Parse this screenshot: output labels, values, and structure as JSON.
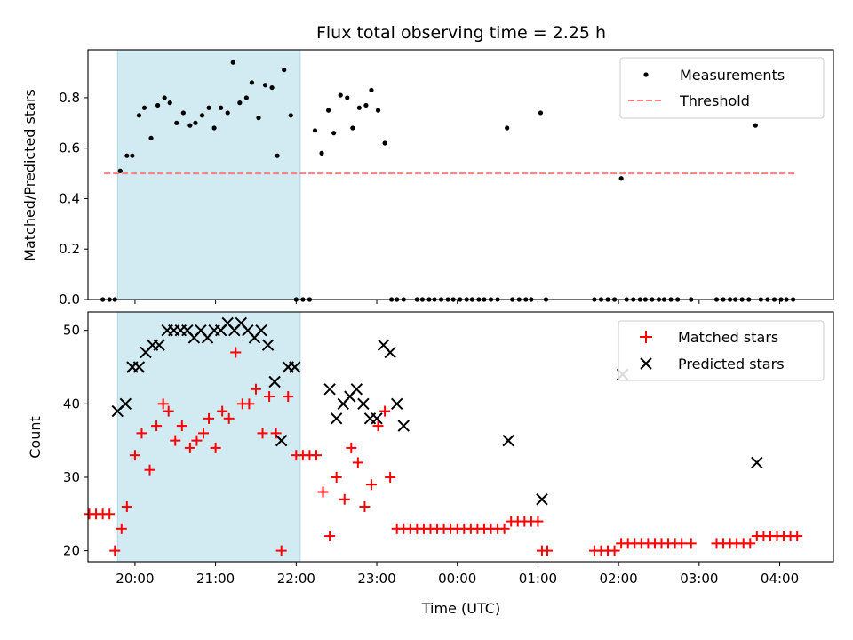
{
  "title": "Flux total observing time = 2.25 h",
  "xlabel": "Time (UTC)",
  "colors": {
    "measurements": "#000000",
    "threshold": "#ff7f7f",
    "matched": "#ff0000",
    "predicted": "#000000",
    "shade": "#add8e6"
  },
  "chart_data": [
    {
      "type": "scatter",
      "panel": "top",
      "ylabel": "Matched/Predicted stars",
      "xlim": [
        "19:25",
        "04:40"
      ],
      "ylim": [
        0,
        0.99
      ],
      "yticks": [
        0.0,
        0.2,
        0.4,
        0.6,
        0.8
      ],
      "ytick_labels": [
        "0.0",
        "0.2",
        "0.4",
        "0.6",
        "0.8"
      ],
      "xticks": [
        "20:00",
        "21:00",
        "22:00",
        "23:00",
        "00:00",
        "01:00",
        "02:00",
        "03:00",
        "04:00"
      ],
      "shaded_interval": [
        "19:47",
        "22:03"
      ],
      "legend": {
        "placement": "top-right",
        "entries": [
          "Measurements",
          "Threshold"
        ]
      },
      "threshold": {
        "name": "Threshold",
        "y": 0.5,
        "x_range": [
          "19:37",
          "04:12"
        ],
        "style": "dashed"
      },
      "series": [
        {
          "name": "Measurements",
          "points": [
            [
              "19:36",
              0
            ],
            [
              "19:41",
              0
            ],
            [
              "19:45",
              0
            ],
            [
              "19:49",
              0.51
            ],
            [
              "19:54",
              0.57
            ],
            [
              "19:58",
              0.57
            ],
            [
              "20:03",
              0.73
            ],
            [
              "20:07",
              0.76
            ],
            [
              "20:12",
              0.64
            ],
            [
              "20:17",
              0.77
            ],
            [
              "20:22",
              0.8
            ],
            [
              "20:26",
              0.78
            ],
            [
              "20:31",
              0.7
            ],
            [
              "20:36",
              0.74
            ],
            [
              "20:41",
              0.69
            ],
            [
              "20:45",
              0.7
            ],
            [
              "20:50",
              0.73
            ],
            [
              "20:55",
              0.76
            ],
            [
              "20:59",
              0.68
            ],
            [
              "21:04",
              0.76
            ],
            [
              "21:09",
              0.74
            ],
            [
              "21:13",
              0.94
            ],
            [
              "21:18",
              0.78
            ],
            [
              "21:23",
              0.8
            ],
            [
              "21:27",
              0.86
            ],
            [
              "21:32",
              0.72
            ],
            [
              "21:37",
              0.85
            ],
            [
              "21:42",
              0.84
            ],
            [
              "21:46",
              0.57
            ],
            [
              "21:51",
              0.91
            ],
            [
              "21:56",
              0.73
            ],
            [
              "22:00",
              0
            ],
            [
              "22:05",
              0
            ],
            [
              "22:10",
              0
            ],
            [
              "22:14",
              0.67
            ],
            [
              "22:19",
              0.58
            ],
            [
              "22:24",
              0.75
            ],
            [
              "22:28",
              0.66
            ],
            [
              "22:33",
              0.81
            ],
            [
              "22:38",
              0.8
            ],
            [
              "22:42",
              0.68
            ],
            [
              "22:47",
              0.76
            ],
            [
              "22:52",
              0.77
            ],
            [
              "22:56",
              0.83
            ],
            [
              "23:01",
              0.75
            ],
            [
              "23:06",
              0.62
            ],
            [
              "23:11",
              0
            ],
            [
              "23:15",
              0
            ],
            [
              "23:20",
              0
            ],
            [
              "23:30",
              0
            ],
            [
              "23:34",
              0
            ],
            [
              "23:39",
              0
            ],
            [
              "23:43",
              0
            ],
            [
              "23:48",
              0
            ],
            [
              "23:53",
              0
            ],
            [
              "23:57",
              0
            ],
            [
              "00:02",
              0
            ],
            [
              "00:07",
              0
            ],
            [
              "00:11",
              0
            ],
            [
              "00:16",
              0
            ],
            [
              "00:20",
              0
            ],
            [
              "00:25",
              0
            ],
            [
              "00:30",
              0
            ],
            [
              "00:37",
              0.68
            ],
            [
              "00:41",
              0
            ],
            [
              "00:46",
              0
            ],
            [
              "00:51",
              0
            ],
            [
              "00:55",
              0
            ],
            [
              "01:02",
              0.74
            ],
            [
              "01:06",
              0
            ],
            [
              "01:42",
              0
            ],
            [
              "01:47",
              0
            ],
            [
              "01:52",
              0
            ],
            [
              "01:57",
              0
            ],
            [
              "02:02",
              0.48
            ],
            [
              "02:06",
              0
            ],
            [
              "02:11",
              0
            ],
            [
              "02:16",
              0
            ],
            [
              "02:20",
              0
            ],
            [
              "02:25",
              0
            ],
            [
              "02:30",
              0
            ],
            [
              "02:34",
              0
            ],
            [
              "02:39",
              0
            ],
            [
              "02:44",
              0
            ],
            [
              "02:54",
              0
            ],
            [
              "03:13",
              0
            ],
            [
              "03:18",
              0
            ],
            [
              "03:23",
              0
            ],
            [
              "03:27",
              0
            ],
            [
              "03:32",
              0
            ],
            [
              "03:37",
              0
            ],
            [
              "03:42",
              0.69
            ],
            [
              "03:46",
              0
            ],
            [
              "03:51",
              0
            ],
            [
              "03:56",
              0
            ],
            [
              "04:01",
              0
            ],
            [
              "04:05",
              0
            ],
            [
              "04:10",
              0
            ]
          ]
        }
      ]
    },
    {
      "type": "scatter",
      "panel": "bottom",
      "ylabel": "Count",
      "xlim": [
        "19:25",
        "04:40"
      ],
      "ylim": [
        18.5,
        52.5
      ],
      "yticks": [
        20,
        30,
        40,
        50
      ],
      "ytick_labels": [
        "20",
        "30",
        "40",
        "50"
      ],
      "xticks": [
        "20:00",
        "21:00",
        "22:00",
        "23:00",
        "00:00",
        "01:00",
        "02:00",
        "03:00",
        "04:00"
      ],
      "xtick_labels": [
        "20:00",
        "21:00",
        "22:00",
        "23:00",
        "00:00",
        "01:00",
        "02:00",
        "03:00",
        "04:00"
      ],
      "shaded_interval": [
        "19:47",
        "22:03"
      ],
      "legend": {
        "placement": "top-right",
        "entries": [
          "Matched stars",
          "Predicted stars"
        ]
      },
      "series": [
        {
          "name": "Matched stars",
          "marker": "+",
          "points": [
            [
              "19:26",
              25
            ],
            [
              "19:31",
              25
            ],
            [
              "19:36",
              25
            ],
            [
              "19:41",
              25
            ],
            [
              "19:45",
              20
            ],
            [
              "19:50",
              23
            ],
            [
              "19:54",
              26
            ],
            [
              "20:00",
              33
            ],
            [
              "20:05",
              36
            ],
            [
              "20:11",
              31
            ],
            [
              "20:16",
              37
            ],
            [
              "20:21",
              40
            ],
            [
              "20:25",
              39
            ],
            [
              "20:30",
              35
            ],
            [
              "20:35",
              37
            ],
            [
              "20:41",
              34
            ],
            [
              "20:46",
              35
            ],
            [
              "20:51",
              36
            ],
            [
              "20:55",
              38
            ],
            [
              "21:00",
              34
            ],
            [
              "21:05",
              39
            ],
            [
              "21:10",
              38
            ],
            [
              "21:15",
              47
            ],
            [
              "21:20",
              40
            ],
            [
              "21:25",
              40
            ],
            [
              "21:30",
              42
            ],
            [
              "21:35",
              36
            ],
            [
              "21:40",
              41
            ],
            [
              "21:45",
              36
            ],
            [
              "21:49",
              20
            ],
            [
              "21:54",
              41
            ],
            [
              "22:00",
              33
            ],
            [
              "22:05",
              33
            ],
            [
              "22:10",
              33
            ],
            [
              "22:15",
              33
            ],
            [
              "22:20",
              28
            ],
            [
              "22:25",
              22
            ],
            [
              "22:30",
              30
            ],
            [
              "22:36",
              27
            ],
            [
              "22:41",
              34
            ],
            [
              "22:46",
              32
            ],
            [
              "22:51",
              26
            ],
            [
              "22:56",
              29
            ],
            [
              "23:01",
              37
            ],
            [
              "23:06",
              39
            ],
            [
              "23:10",
              30
            ],
            [
              "23:15",
              23
            ],
            [
              "23:20",
              23
            ],
            [
              "23:25",
              23
            ],
            [
              "23:30",
              23
            ],
            [
              "23:35",
              23
            ],
            [
              "23:40",
              23
            ],
            [
              "23:45",
              23
            ],
            [
              "23:50",
              23
            ],
            [
              "23:55",
              23
            ],
            [
              "00:00",
              23
            ],
            [
              "00:05",
              23
            ],
            [
              "00:10",
              23
            ],
            [
              "00:15",
              23
            ],
            [
              "00:20",
              23
            ],
            [
              "00:25",
              23
            ],
            [
              "00:30",
              23
            ],
            [
              "00:35",
              23
            ],
            [
              "00:40",
              24
            ],
            [
              "00:45",
              24
            ],
            [
              "00:50",
              24
            ],
            [
              "00:55",
              24
            ],
            [
              "01:00",
              24
            ],
            [
              "01:03",
              20
            ],
            [
              "01:07",
              20
            ],
            [
              "01:42",
              20
            ],
            [
              "01:47",
              20
            ],
            [
              "01:52",
              20
            ],
            [
              "01:57",
              20
            ],
            [
              "02:02",
              21
            ],
            [
              "02:07",
              21
            ],
            [
              "02:12",
              21
            ],
            [
              "02:17",
              21
            ],
            [
              "02:22",
              21
            ],
            [
              "02:27",
              21
            ],
            [
              "02:32",
              21
            ],
            [
              "02:37",
              21
            ],
            [
              "02:42",
              21
            ],
            [
              "02:47",
              21
            ],
            [
              "02:54",
              21
            ],
            [
              "03:13",
              21
            ],
            [
              "03:18",
              21
            ],
            [
              "03:23",
              21
            ],
            [
              "03:28",
              21
            ],
            [
              "03:33",
              21
            ],
            [
              "03:38",
              21
            ],
            [
              "03:43",
              22
            ],
            [
              "03:48",
              22
            ],
            [
              "03:53",
              22
            ],
            [
              "03:58",
              22
            ],
            [
              "04:03",
              22
            ],
            [
              "04:08",
              22
            ],
            [
              "04:13",
              22
            ]
          ]
        },
        {
          "name": "Predicted stars",
          "marker": "x",
          "points": [
            [
              "19:47",
              39
            ],
            [
              "19:53",
              40
            ],
            [
              "19:58",
              45
            ],
            [
              "20:03",
              45
            ],
            [
              "20:08",
              47
            ],
            [
              "20:13",
              48
            ],
            [
              "20:18",
              48
            ],
            [
              "20:24",
              50
            ],
            [
              "20:29",
              50
            ],
            [
              "20:34",
              50
            ],
            [
              "20:39",
              50
            ],
            [
              "20:44",
              49
            ],
            [
              "20:49",
              50
            ],
            [
              "20:54",
              49
            ],
            [
              "20:59",
              50
            ],
            [
              "21:04",
              50
            ],
            [
              "21:09",
              51
            ],
            [
              "21:14",
              50
            ],
            [
              "21:19",
              51
            ],
            [
              "21:24",
              50
            ],
            [
              "21:29",
              49
            ],
            [
              "21:34",
              50
            ],
            [
              "21:39",
              48
            ],
            [
              "21:44",
              43
            ],
            [
              "21:49",
              35
            ],
            [
              "21:54",
              45
            ],
            [
              "21:59",
              45
            ],
            [
              "22:25",
              42
            ],
            [
              "22:30",
              38
            ],
            [
              "22:35",
              40
            ],
            [
              "22:40",
              41
            ],
            [
              "22:45",
              42
            ],
            [
              "22:50",
              40
            ],
            [
              "22:55",
              38
            ],
            [
              "23:00",
              38
            ],
            [
              "23:05",
              48
            ],
            [
              "23:10",
              47
            ],
            [
              "23:15",
              40
            ],
            [
              "23:20",
              37
            ],
            [
              "00:38",
              35
            ],
            [
              "01:03",
              27
            ],
            [
              "02:03",
              44
            ],
            [
              "03:43",
              32
            ]
          ]
        }
      ]
    }
  ]
}
